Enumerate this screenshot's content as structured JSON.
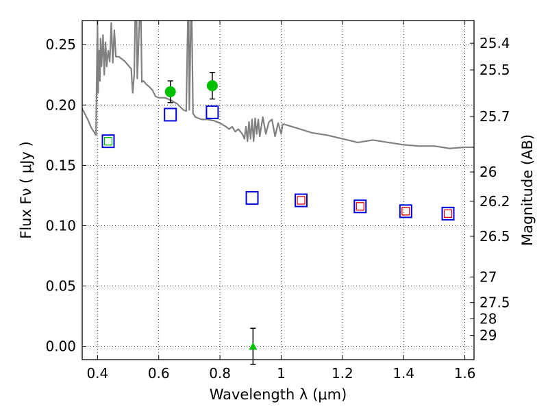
{
  "chart_data": {
    "type": "scatter",
    "xlabel": "Wavelength  λ (μm)",
    "ylabel": "Flux  Fν  ( μJy )",
    "y2label": "Magnitude (AB)",
    "xlim": [
      0.35,
      1.63
    ],
    "ylim": [
      -0.011,
      0.27
    ],
    "grid": true,
    "x_ticks": [
      0.4,
      0.6,
      0.8,
      1.0,
      1.2,
      1.4,
      1.6
    ],
    "x_tick_labels": [
      "0.4",
      "0.6",
      "0.8",
      "1",
      "1.2",
      "1.4",
      "1.6"
    ],
    "y_ticks": [
      0.0,
      0.05,
      0.1,
      0.15,
      0.2,
      0.25
    ],
    "y_tick_labels": [
      "0.00",
      "0.05",
      "0.10",
      "0.15",
      "0.20",
      "0.25"
    ],
    "magnitude_ticks": [
      {
        "flux": 0.2512,
        "label": "25.4"
      },
      {
        "flux": 0.2291,
        "label": "25.5"
      },
      {
        "flux": 0.1905,
        "label": "25.7"
      },
      {
        "flux": 0.1445,
        "label": "26"
      },
      {
        "flux": 0.1202,
        "label": "26.2"
      },
      {
        "flux": 0.0912,
        "label": "26.5"
      },
      {
        "flux": 0.0575,
        "label": "27"
      },
      {
        "flux": 0.0363,
        "label": "27.5"
      },
      {
        "flux": 0.0229,
        "label": "28"
      },
      {
        "flux": 0.0091,
        "label": "29"
      }
    ],
    "colors": {
      "model_line": "#808080",
      "green": "#00c000",
      "blue": "#0000dd",
      "red": "#dd0000",
      "errorbar": "#000000",
      "grid": "#000000"
    },
    "model_spectrum": [
      [
        0.35,
        0.197
      ],
      [
        0.36,
        0.192
      ],
      [
        0.37,
        0.187
      ],
      [
        0.38,
        0.181
      ],
      [
        0.39,
        0.177
      ],
      [
        0.395,
        0.175
      ],
      [
        0.4,
        0.27
      ],
      [
        0.402,
        0.21
      ],
      [
        0.405,
        0.245
      ],
      [
        0.408,
        0.22
      ],
      [
        0.41,
        0.255
      ],
      [
        0.413,
        0.232
      ],
      [
        0.418,
        0.258
      ],
      [
        0.422,
        0.225
      ],
      [
        0.426,
        0.252
      ],
      [
        0.43,
        0.232
      ],
      [
        0.435,
        0.245
      ],
      [
        0.44,
        0.236
      ],
      [
        0.445,
        0.268
      ],
      [
        0.45,
        0.235
      ],
      [
        0.455,
        0.262
      ],
      [
        0.46,
        0.24
      ],
      [
        0.47,
        0.24
      ],
      [
        0.48,
        0.238
      ],
      [
        0.49,
        0.236
      ],
      [
        0.5,
        0.233
      ],
      [
        0.51,
        0.23
      ],
      [
        0.515,
        0.21
      ],
      [
        0.52,
        0.226
      ],
      [
        0.523,
        0.27
      ],
      [
        0.528,
        0.27
      ],
      [
        0.53,
        0.222
      ],
      [
        0.537,
        0.27
      ],
      [
        0.542,
        0.27
      ],
      [
        0.545,
        0.219
      ],
      [
        0.55,
        0.22
      ],
      [
        0.56,
        0.217
      ],
      [
        0.57,
        0.215
      ],
      [
        0.58,
        0.212
      ],
      [
        0.59,
        0.207
      ],
      [
        0.6,
        0.206
      ],
      [
        0.62,
        0.206
      ],
      [
        0.64,
        0.204
      ],
      [
        0.66,
        0.201
      ],
      [
        0.68,
        0.196
      ],
      [
        0.69,
        0.195
      ],
      [
        0.695,
        0.27
      ],
      [
        0.698,
        0.27
      ],
      [
        0.7,
        0.196
      ],
      [
        0.705,
        0.27
      ],
      [
        0.708,
        0.27
      ],
      [
        0.712,
        0.193
      ],
      [
        0.72,
        0.19
      ],
      [
        0.74,
        0.188
      ],
      [
        0.76,
        0.188
      ],
      [
        0.78,
        0.187
      ],
      [
        0.8,
        0.185
      ],
      [
        0.82,
        0.182
      ],
      [
        0.83,
        0.18
      ],
      [
        0.84,
        0.182
      ],
      [
        0.85,
        0.178
      ],
      [
        0.86,
        0.18
      ],
      [
        0.87,
        0.177
      ],
      [
        0.875,
        0.175
      ],
      [
        0.88,
        0.172
      ],
      [
        0.885,
        0.182
      ],
      [
        0.89,
        0.17
      ],
      [
        0.895,
        0.186
      ],
      [
        0.9,
        0.172
      ],
      [
        0.905,
        0.188
      ],
      [
        0.91,
        0.17
      ],
      [
        0.915,
        0.189
      ],
      [
        0.92,
        0.176
      ],
      [
        0.925,
        0.188
      ],
      [
        0.93,
        0.174
      ],
      [
        0.94,
        0.19
      ],
      [
        0.95,
        0.176
      ],
      [
        0.96,
        0.186
      ],
      [
        0.97,
        0.188
      ],
      [
        0.98,
        0.174
      ],
      [
        0.99,
        0.185
      ],
      [
        1.0,
        0.176
      ],
      [
        1.005,
        0.184
      ],
      [
        1.01,
        0.184
      ],
      [
        1.05,
        0.181
      ],
      [
        1.1,
        0.177
      ],
      [
        1.15,
        0.175
      ],
      [
        1.2,
        0.172
      ],
      [
        1.25,
        0.169
      ],
      [
        1.3,
        0.171
      ],
      [
        1.35,
        0.169
      ],
      [
        1.4,
        0.167
      ],
      [
        1.45,
        0.166
      ],
      [
        1.5,
        0.166
      ],
      [
        1.55,
        0.164
      ],
      [
        1.6,
        0.165
      ],
      [
        1.63,
        0.165
      ]
    ],
    "series": [
      {
        "marker": "circle",
        "color": "green",
        "points": [
          {
            "x": 0.638,
            "y": 0.211,
            "err": 0.009
          },
          {
            "x": 0.775,
            "y": 0.216,
            "err": 0.011
          }
        ]
      },
      {
        "marker": "triangle-up",
        "color": "green",
        "points": [
          {
            "x": 0.908,
            "y": 0.0,
            "err": 0.015
          }
        ]
      },
      {
        "marker": "square-open",
        "color": "blue",
        "points": [
          {
            "x": 0.435,
            "y": 0.17
          },
          {
            "x": 0.638,
            "y": 0.192
          },
          {
            "x": 0.775,
            "y": 0.194
          },
          {
            "x": 0.905,
            "y": 0.123
          },
          {
            "x": 1.065,
            "y": 0.121
          },
          {
            "x": 1.258,
            "y": 0.116
          },
          {
            "x": 1.407,
            "y": 0.112
          },
          {
            "x": 1.545,
            "y": 0.11
          }
        ]
      },
      {
        "marker": "square-open-small",
        "color": "green",
        "points": [
          {
            "x": 0.435,
            "y": 0.17
          }
        ]
      },
      {
        "marker": "square-open-small",
        "color": "red",
        "points": [
          {
            "x": 1.065,
            "y": 0.121
          },
          {
            "x": 1.258,
            "y": 0.116
          },
          {
            "x": 1.407,
            "y": 0.112
          },
          {
            "x": 1.545,
            "y": 0.11
          }
        ]
      }
    ]
  }
}
